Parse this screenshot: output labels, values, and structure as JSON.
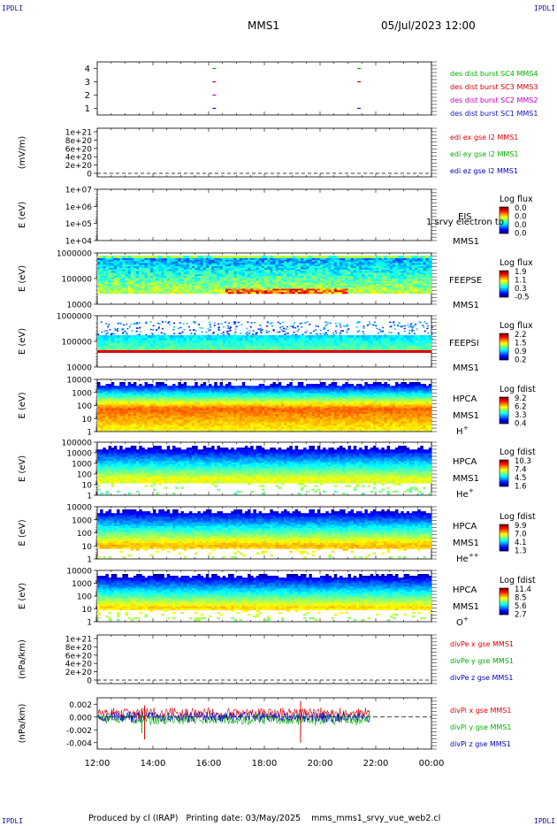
{
  "header": {
    "corner_tl": "IPDLI",
    "corner_tr": "IPDLI",
    "corner_bl": "IPDLI",
    "corner_br": "IPDLI",
    "spacecraft": "MMS1",
    "datetime": "05/Jul/2023 12:00"
  },
  "footer": {
    "produced_by": "Produced by  cl (IRAP)",
    "printing_date": "Printing date: 03/May/2025",
    "script_name": "mms_mms1_srvy_vue_web2.cl"
  },
  "x_ticks": [
    "12:00",
    "14:00",
    "16:00",
    "18:00",
    "20:00",
    "22:00",
    "00:00"
  ],
  "colors": {
    "mms1": "#1010c0",
    "mms2": "#c000c0",
    "mms3": "#d00000",
    "mms4": "#00b000",
    "x": "#e00000",
    "y": "#00b000",
    "z": "#0000c0",
    "ylabel_unit": "#000000"
  },
  "chart_data": [
    {
      "type": "scatter",
      "panel": "burst",
      "ylim": [
        0.5,
        4.5
      ],
      "yticks": [
        "4",
        "3",
        "2",
        "1"
      ],
      "series": [
        {
          "name": "des dist burst SC1 MMS1",
          "level": 1,
          "x_hours": [
            16.2,
            21.4
          ]
        },
        {
          "name": "des dist burst SC2 MMS2",
          "level": 2,
          "x_hours": [
            16.2
          ]
        },
        {
          "name": "des dist burst SC3 MMS3",
          "level": 3,
          "x_hours": [
            16.2,
            21.4
          ]
        },
        {
          "name": "des dist burst SC4 MMS4",
          "level": 4,
          "x_hours": [
            16.2,
            21.4
          ]
        }
      ]
    },
    {
      "type": "line",
      "panel": "edi",
      "ylabel": "(mV/m)",
      "yticks": [
        "1e+21",
        "8e+20",
        "6e+20",
        "4e+20",
        "2e+20",
        "0"
      ],
      "series": [
        {
          "name": "edi ex gse l2 MMS1"
        },
        {
          "name": "edi ey gse l2 MMS1"
        },
        {
          "name": "edi ez gse l2 MMS1"
        }
      ]
    },
    {
      "type": "heatmap",
      "panel": "eis",
      "ylabel": "E (eV)",
      "yticks": [
        "1e+07",
        "1e+06",
        "1e+05",
        "1e+04"
      ],
      "label": "EIS",
      "spacecraft": "MMS1",
      "overlay_text": "1 srvy electron to",
      "colorbar_title": "Log flux",
      "colorbar_ticks": [
        "0.0",
        "0.0",
        "0.0",
        "0.0"
      ]
    },
    {
      "type": "heatmap",
      "panel": "feeps_e",
      "ylabel": "E (eV)",
      "yticks": [
        "1000000",
        "100000",
        "10000"
      ],
      "label": "FEEPSE",
      "spacecraft": "MMS1",
      "colorbar_title": "Log flux",
      "colorbar_ticks": [
        "1.9",
        "1.1",
        "0.3",
        "-0.5"
      ]
    },
    {
      "type": "heatmap",
      "panel": "feeps_i",
      "ylabel": "E (eV)",
      "yticks": [
        "1000000",
        "100000",
        "10000"
      ],
      "label": "FEEPSI",
      "spacecraft": "MMS1",
      "colorbar_title": "Log flux",
      "colorbar_ticks": [
        "2.2",
        "1.5",
        "0.9",
        "0.2"
      ]
    },
    {
      "type": "heatmap",
      "panel": "hpca_h",
      "ylabel": "E (eV)",
      "yticks": [
        "10000",
        "1000",
        "100",
        "10",
        "1"
      ],
      "label": "HPCA",
      "spacecraft": "MMS1",
      "species": "H",
      "species_charge": "+",
      "colorbar_title": "Log fdist",
      "colorbar_ticks": [
        "9.2",
        "6.2",
        "3.3",
        "0.4"
      ]
    },
    {
      "type": "heatmap",
      "panel": "hpca_he1",
      "ylabel": "E (eV)",
      "yticks": [
        "100000",
        "10000",
        "1000",
        "100",
        "10",
        "1"
      ],
      "label": "HPCA",
      "spacecraft": "MMS1",
      "species": "He",
      "species_charge": "+",
      "colorbar_title": "Log fdist",
      "colorbar_ticks": [
        "10.3",
        "7.4",
        "4.5",
        "1.6"
      ]
    },
    {
      "type": "heatmap",
      "panel": "hpca_he2",
      "ylabel": "E (eV)",
      "yticks": [
        "10000",
        "1000",
        "100",
        "10",
        "1"
      ],
      "label": "HPCA",
      "spacecraft": "MMS1",
      "species": "He",
      "species_charge": "++",
      "colorbar_title": "Log fdist",
      "colorbar_ticks": [
        "9.9",
        "7.0",
        "4.1",
        "1.3"
      ]
    },
    {
      "type": "heatmap",
      "panel": "hpca_o",
      "ylabel": "E (eV)",
      "yticks": [
        "10000",
        "1000",
        "100",
        "10",
        "1"
      ],
      "label": "HPCA",
      "spacecraft": "MMS1",
      "species": "O",
      "species_charge": "+",
      "colorbar_title": "Log fdist",
      "colorbar_ticks": [
        "11.4",
        "8.5",
        "5.6",
        "2.7"
      ]
    },
    {
      "type": "line",
      "panel": "divpe",
      "ylabel": "(nPa/km)",
      "yticks": [
        "1e+21",
        "8e+20",
        "6e+20",
        "4e+20",
        "2e+20",
        "0"
      ],
      "series": [
        {
          "name": "divPe x gse MMS1"
        },
        {
          "name": "divPe y gse MMS1"
        },
        {
          "name": "divPe z gse MMS1"
        }
      ]
    },
    {
      "type": "line",
      "panel": "divpi",
      "ylabel": "(nPa/km)",
      "ylim": [
        -0.005,
        0.003
      ],
      "yticks": [
        "0.002",
        "0.000",
        "-0.002",
        "-0.004"
      ],
      "data_end_hour": 21.8,
      "series": [
        {
          "name": "divPi x gse MMS1"
        },
        {
          "name": "divPi y gse MMS1"
        },
        {
          "name": "divPi z gse MMS1"
        }
      ]
    }
  ]
}
